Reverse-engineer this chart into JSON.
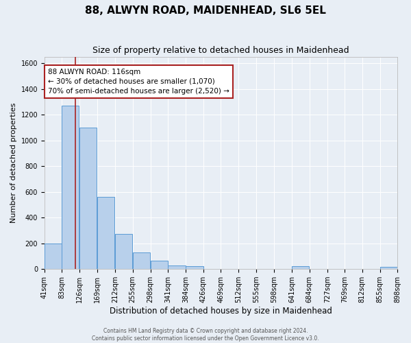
{
  "title": "88, ALWYN ROAD, MAIDENHEAD, SL6 5EL",
  "subtitle": "Size of property relative to detached houses in Maidenhead",
  "xlabel": "Distribution of detached houses by size in Maidenhead",
  "ylabel": "Number of detached properties",
  "bin_labels": [
    "41sqm",
    "83sqm",
    "126sqm",
    "169sqm",
    "212sqm",
    "255sqm",
    "298sqm",
    "341sqm",
    "384sqm",
    "426sqm",
    "469sqm",
    "512sqm",
    "555sqm",
    "598sqm",
    "641sqm",
    "684sqm",
    "727sqm",
    "769sqm",
    "812sqm",
    "855sqm",
    "898sqm"
  ],
  "bin_left_edges": [
    41,
    83,
    126,
    169,
    212,
    255,
    298,
    341,
    384,
    426,
    469,
    512,
    555,
    598,
    641,
    684,
    727,
    769,
    812,
    855
  ],
  "bar_heights": [
    200,
    1270,
    1100,
    560,
    275,
    130,
    65,
    30,
    20,
    0,
    0,
    0,
    0,
    0,
    20,
    0,
    0,
    0,
    0,
    15
  ],
  "bar_color": "#b8d0eb",
  "bar_edge_color": "#5b9bd5",
  "vline_x": 116,
  "vline_color": "#aa2222",
  "ylim": [
    0,
    1650
  ],
  "yticks": [
    0,
    200,
    400,
    600,
    800,
    1000,
    1200,
    1400,
    1600
  ],
  "annotation_text": "88 ALWYN ROAD: 116sqm\n← 30% of detached houses are smaller (1,070)\n70% of semi-detached houses are larger (2,520) →",
  "annotation_box_facecolor": "#ffffff",
  "annotation_box_edgecolor": "#aa2222",
  "bg_color": "#e8eef5",
  "grid_color": "#ffffff",
  "footer_line1": "Contains HM Land Registry data © Crown copyright and database right 2024.",
  "footer_line2": "Contains public sector information licensed under the Open Government Licence v3.0.",
  "title_fontsize": 11,
  "subtitle_fontsize": 9,
  "xlabel_fontsize": 8.5,
  "ylabel_fontsize": 8,
  "tick_fontsize": 7,
  "annot_fontsize": 7.5,
  "footer_fontsize": 5.5,
  "bin_width": 42
}
